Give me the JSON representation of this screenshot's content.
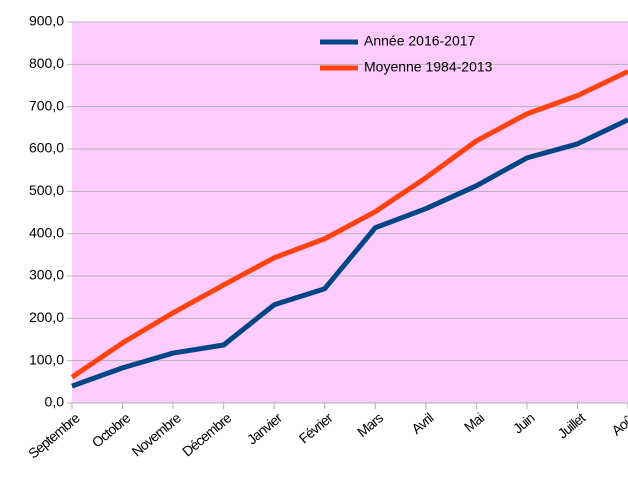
{
  "chart_data": {
    "type": "line",
    "categories": [
      "Septembre",
      "Octobre",
      "Novembre",
      "Décembre",
      "Janvier",
      "Février",
      "Mars",
      "Avril",
      "Mai",
      "Juin",
      "Juillet",
      "Août"
    ],
    "series": [
      {
        "name": "Année 2016-2017",
        "color": "#004586",
        "values": [
          40,
          83,
          118,
          137,
          232,
          270,
          414,
          459,
          513,
          579,
          612,
          669
        ]
      },
      {
        "name": "Moyenne 1984-2013",
        "color": "#ff420e",
        "values": [
          61,
          142,
          213,
          279,
          343,
          388,
          452,
          532,
          619,
          683,
          726,
          783
        ]
      }
    ],
    "ylim": [
      0,
      900
    ],
    "yticks": [
      {
        "value": 0,
        "label": "0,0"
      },
      {
        "value": 100,
        "label": "100,0"
      },
      {
        "value": 200,
        "label": "200,0"
      },
      {
        "value": 300,
        "label": "300,0"
      },
      {
        "value": 400,
        "label": "400,0"
      },
      {
        "value": 500,
        "label": "500,0"
      },
      {
        "value": 600,
        "label": "600,0"
      },
      {
        "value": 700,
        "label": "700,0"
      },
      {
        "value": 800,
        "label": "800,0"
      },
      {
        "value": 900,
        "label": "900,0"
      }
    ],
    "grid": true,
    "background": "#ffccff",
    "legend": "top-right"
  }
}
